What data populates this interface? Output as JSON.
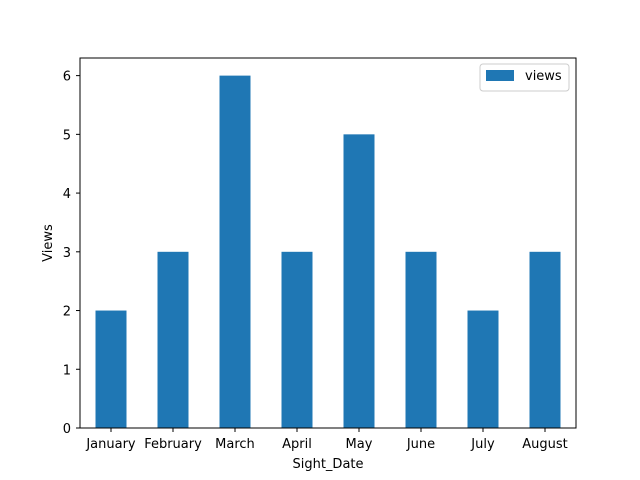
{
  "chart_data": {
    "type": "bar",
    "categories": [
      "January",
      "February",
      "March",
      "April",
      "May",
      "June",
      "July",
      "August"
    ],
    "series": [
      {
        "name": "views",
        "values": [
          2,
          3,
          6,
          3,
          5,
          3,
          2,
          3
        ]
      }
    ],
    "xlabel": "Sight_Date",
    "ylabel": "Views",
    "ylim": [
      0,
      6.3
    ],
    "yticks": [
      "0",
      "1",
      "2",
      "3",
      "4",
      "5",
      "6"
    ],
    "grid": false,
    "legend_position": "top-right",
    "bar_color": "#1f77b4"
  }
}
